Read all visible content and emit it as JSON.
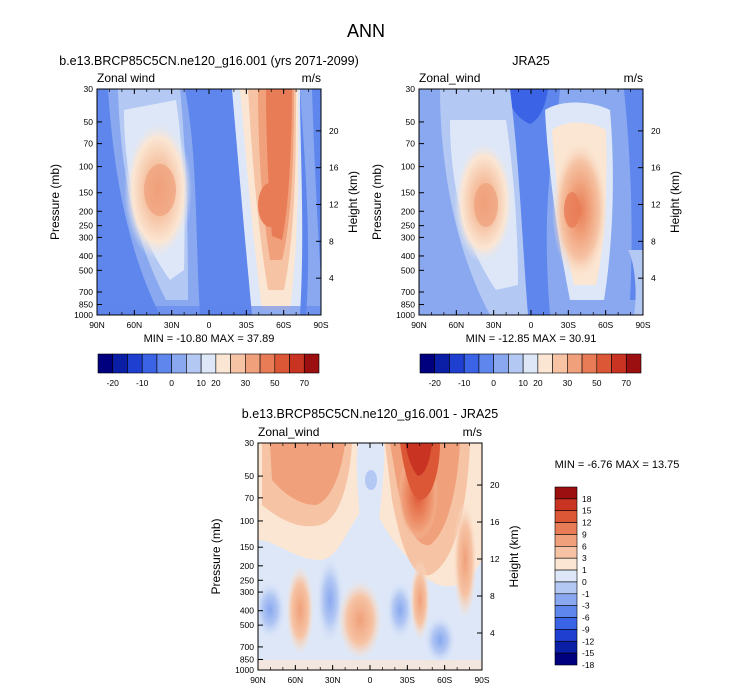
{
  "page_title": "ANN",
  "colors": {
    "full_scale": [
      "#00007f",
      "#0a1fa6",
      "#1e3fd0",
      "#3a63e6",
      "#5e86ec",
      "#89a8f0",
      "#b3c8f3",
      "#dde7f8",
      "#fbe6d3",
      "#f6c4a5",
      "#f0a07a",
      "#e87c56",
      "#dc5736",
      "#c93322",
      "#9b0f10"
    ],
    "diff_scale": [
      "#00007f",
      "#0a1fa6",
      "#1e3fd0",
      "#3a63e6",
      "#5e86ec",
      "#89a8f0",
      "#b3c8f3",
      "#dde7f8",
      "#fbe6d3",
      "#f6c4a5",
      "#f0a07a",
      "#e87c56",
      "#dc5736",
      "#c93322",
      "#9b0f10"
    ]
  },
  "chart_data": [
    {
      "type": "heatmap",
      "title": "b.e13.BRCP85C5CN.ne120_g16.001 (yrs 2071-2099)",
      "left_label": "Zonal wind",
      "right_label": "m/s",
      "xlabel": "",
      "ylabel": "Pressure (mb)",
      "y2label": "Height (km)",
      "x_ticks": [
        "90N",
        "60N",
        "30N",
        "0",
        "30S",
        "60S",
        "90S"
      ],
      "y_ticks": [
        "30",
        "50",
        "70",
        "100",
        "150",
        "200",
        "250",
        "300",
        "400",
        "500",
        "700",
        "850",
        "1000"
      ],
      "y2_ticks": [
        "20",
        "16",
        "12",
        "8",
        "4"
      ],
      "stats": "MIN = -10.80  MAX = 37.89",
      "min": -10.8,
      "max": 37.89,
      "colorbar_labels": [
        "-20",
        "-10",
        "0",
        "10",
        "20",
        "30",
        "50",
        "70"
      ],
      "colorbar_levels": [
        -25,
        -20,
        -15,
        -10,
        -5,
        0,
        5,
        10,
        15,
        20,
        25,
        30,
        40,
        50,
        60,
        70
      ],
      "jets": [
        {
          "lat": -40,
          "p": 200,
          "value": 37.89
        },
        {
          "lat": 33,
          "p": 170,
          "value": 21
        }
      ]
    },
    {
      "type": "heatmap",
      "title": "JRA25",
      "left_label": "Zonal_wind",
      "right_label": "m/s",
      "xlabel": "",
      "ylabel": "Pressure (mb)",
      "y2label": "Height (km)",
      "x_ticks": [
        "90N",
        "60N",
        "30N",
        "0",
        "30S",
        "60S",
        "90S"
      ],
      "y_ticks": [
        "30",
        "50",
        "70",
        "100",
        "150",
        "200",
        "250",
        "300",
        "400",
        "500",
        "700",
        "850",
        "1000"
      ],
      "y2_ticks": [
        "20",
        "16",
        "12",
        "8",
        "4"
      ],
      "stats": "MIN = -12.85  MAX =  30.91",
      "min": -12.85,
      "max": 30.91,
      "colorbar_labels": [
        "-20",
        "-10",
        "0",
        "10",
        "20",
        "30",
        "50",
        "70"
      ],
      "colorbar_levels": [
        -25,
        -20,
        -15,
        -10,
        -5,
        0,
        5,
        10,
        15,
        20,
        25,
        30,
        40,
        50,
        60,
        70
      ],
      "jets": [
        {
          "lat": -38,
          "p": 200,
          "value": 30.91
        },
        {
          "lat": 34,
          "p": 200,
          "value": 21
        }
      ]
    },
    {
      "type": "heatmap",
      "title": "b.e13.BRCP85C5CN.ne120_g16.001 - JRA25",
      "left_label": "Zonal_wind",
      "right_label": "m/s",
      "xlabel": "",
      "ylabel": "Pressure (mb)",
      "y2label": "Height (km)",
      "x_ticks": [
        "90N",
        "60N",
        "30N",
        "0",
        "30S",
        "60S",
        "90S"
      ],
      "y_ticks": [
        "30",
        "50",
        "70",
        "100",
        "150",
        "200",
        "250",
        "300",
        "400",
        "500",
        "700",
        "850",
        "1000"
      ],
      "y2_ticks": [
        "20",
        "16",
        "12",
        "8",
        "4"
      ],
      "stats": "MIN =  -6.76  MAX =  13.75",
      "min": -6.76,
      "max": 13.75,
      "colorbar_labels": [
        "18",
        "15",
        "12",
        "9",
        "6",
        "3",
        "1",
        "0",
        "-1",
        "-3",
        "-6",
        "-9",
        "-12",
        "-15",
        "-18"
      ]
    }
  ]
}
